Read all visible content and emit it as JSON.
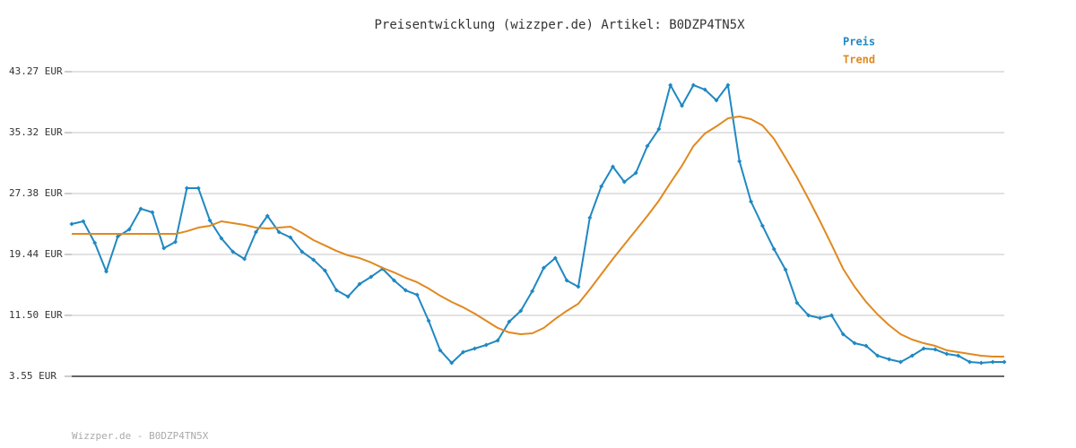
{
  "chart_data": {
    "type": "line",
    "title": "Preisentwicklung (wizzper.de) Artikel: B0DZP4TN5X",
    "footer": "Wizzper.de - B0DZP4TN5X",
    "ylim": [
      3.55,
      43.27
    ],
    "yticks": [
      {
        "value": 3.55,
        "label": "3.55 EUR"
      },
      {
        "value": 11.5,
        "label": "11.50 EUR"
      },
      {
        "value": 19.44,
        "label": "19.44 EUR"
      },
      {
        "value": 27.38,
        "label": "27.38 EUR"
      },
      {
        "value": 35.32,
        "label": "35.32 EUR"
      },
      {
        "value": 43.27,
        "label": "43.27 EUR"
      }
    ],
    "grid": true,
    "legend": "top-right",
    "series": [
      {
        "name": "Preis",
        "color": "#1f88c2",
        "markers": true,
        "values": [
          23.41,
          23.76,
          20.96,
          17.22,
          21.77,
          22.71,
          25.4,
          24.93,
          20.26,
          21.07,
          28.08,
          28.08,
          23.88,
          21.54,
          19.79,
          18.85,
          22.36,
          24.46,
          22.36,
          21.66,
          19.79,
          18.74,
          17.33,
          14.76,
          13.95,
          15.58,
          16.52,
          17.57,
          16.05,
          14.76,
          14.18,
          10.79,
          6.94,
          5.3,
          6.7,
          7.17,
          7.64,
          8.22,
          10.68,
          12.08,
          14.65,
          17.69,
          18.97,
          16.05,
          15.23,
          24.23,
          28.32,
          30.89,
          28.9,
          30.07,
          33.57,
          35.79,
          41.52,
          38.83,
          41.52,
          40.93,
          39.53,
          41.52,
          31.59,
          26.33,
          23.18,
          20.14,
          17.45,
          13.13,
          11.49,
          11.14,
          11.49,
          9.04,
          7.87,
          7.52,
          6.24,
          5.77,
          5.42,
          6.24,
          7.17,
          7.05,
          6.47,
          6.24,
          5.42,
          5.3,
          5.42,
          5.42
        ]
      },
      {
        "name": "Trend",
        "color": "#e0891f",
        "markers": false,
        "values": [
          22.12,
          22.12,
          22.12,
          22.12,
          22.12,
          22.12,
          22.12,
          22.12,
          22.12,
          22.12,
          22.47,
          22.94,
          23.18,
          23.76,
          23.53,
          23.29,
          22.94,
          22.82,
          22.94,
          23.06,
          22.24,
          21.31,
          20.61,
          19.9,
          19.32,
          18.97,
          18.39,
          17.69,
          17.1,
          16.4,
          15.82,
          15.0,
          14.06,
          13.25,
          12.55,
          11.73,
          10.79,
          9.86,
          9.27,
          9.04,
          9.16,
          9.86,
          11.03,
          12.08,
          13.01,
          14.88,
          16.87,
          18.85,
          20.72,
          22.59,
          24.46,
          26.45,
          28.78,
          31.0,
          33.57,
          35.21,
          36.14,
          37.19,
          37.43,
          37.08,
          36.26,
          34.51,
          32.05,
          29.48,
          26.68,
          23.76,
          20.72,
          17.57,
          15.23,
          13.25,
          11.61,
          10.21,
          9.04,
          8.34,
          7.87,
          7.52,
          6.94,
          6.7,
          6.47,
          6.24,
          6.12,
          6.12
        ]
      }
    ]
  }
}
